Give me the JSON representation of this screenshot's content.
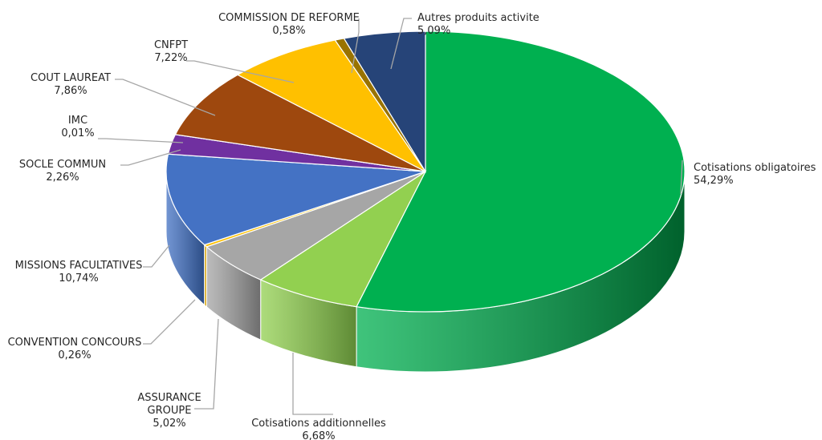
{
  "chart_data": {
    "type": "pie",
    "style": "3d-exploded-none",
    "title": "",
    "slices": [
      {
        "label": "Cotisations obligatoires",
        "value_text": "54,29%",
        "value": 54.29,
        "color": "#00b050",
        "side_color": "#00612c"
      },
      {
        "label": "Cotisations additionnelles",
        "value_text": "6,68%",
        "value": 6.68,
        "color": "#92d050",
        "side_color": "#5e8a35"
      },
      {
        "label": "ASSURANCE GROUPE",
        "value_text": "5,02%",
        "value": 5.02,
        "color": "#a6a6a6",
        "side_color": "#6d6d6d"
      },
      {
        "label": "CONVENTION CONCOURS",
        "value_text": "0,26%",
        "value": 0.26,
        "color": "#ffc000",
        "side_color": "#b08500"
      },
      {
        "label": "MISSIONS FACULTATIVES",
        "value_text": "10,74%",
        "value": 10.74,
        "color": "#4472c4",
        "side_color": "#2c4d85"
      },
      {
        "label": "SOCLE COMMUN",
        "value_text": "2,26%",
        "value": 2.26,
        "color": "#7030a0",
        "side_color": "#4a1f6b"
      },
      {
        "label": "IMC",
        "value_text": "0,01%",
        "value": 0.01,
        "color": "#70ad47",
        "side_color": "#4a7330"
      },
      {
        "label": "COUT LAUREAT",
        "value_text": "7,86%",
        "value": 7.86,
        "color": "#9e480e",
        "side_color": "#662e09"
      },
      {
        "label": "CNFPT",
        "value_text": "7,22%",
        "value": 7.22,
        "color": "#ffc000",
        "side_color": "#b08500"
      },
      {
        "label": "COMMISSION DE REFORME",
        "value_text": "0,58%",
        "value": 0.58,
        "color": "#997300",
        "side_color": "#664d00"
      },
      {
        "label": "Autres produits activite",
        "value_text": "5,09%",
        "value": 5.09,
        "color": "#264478",
        "side_color": "#172a4a"
      }
    ]
  }
}
